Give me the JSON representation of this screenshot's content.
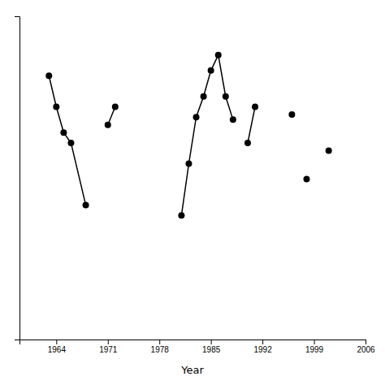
{
  "chart_data": {
    "type": "line",
    "x_label": "Year",
    "series": [
      {
        "x": [
          1963,
          1964,
          1965,
          1966,
          1968
        ],
        "values": [
          92,
          80,
          70,
          66,
          42
        ]
      },
      {
        "x": [
          1971,
          1972
        ],
        "values": [
          73,
          80
        ]
      },
      {
        "x": [
          1981,
          1982,
          1983,
          1984,
          1985,
          1986,
          1987,
          1988
        ],
        "values": [
          38,
          58,
          76,
          84,
          94,
          100,
          84,
          75
        ]
      },
      {
        "x": [
          1990,
          1991
        ],
        "values": [
          66,
          80
        ]
      },
      {
        "x": [
          1996
        ],
        "values": [
          77
        ]
      },
      {
        "x": [
          1998
        ],
        "values": [
          52
        ]
      },
      {
        "x": [
          2001
        ],
        "values": [
          63
        ]
      }
    ],
    "xlim": [
      1959,
      2006
    ],
    "ylim": [
      -10,
      115
    ],
    "xticks": [
      1964,
      1971,
      1978,
      1985,
      1992,
      1999,
      2006
    ],
    "yticks": [],
    "tick_labels": "x",
    "color": "black",
    "marker": "circle"
  }
}
